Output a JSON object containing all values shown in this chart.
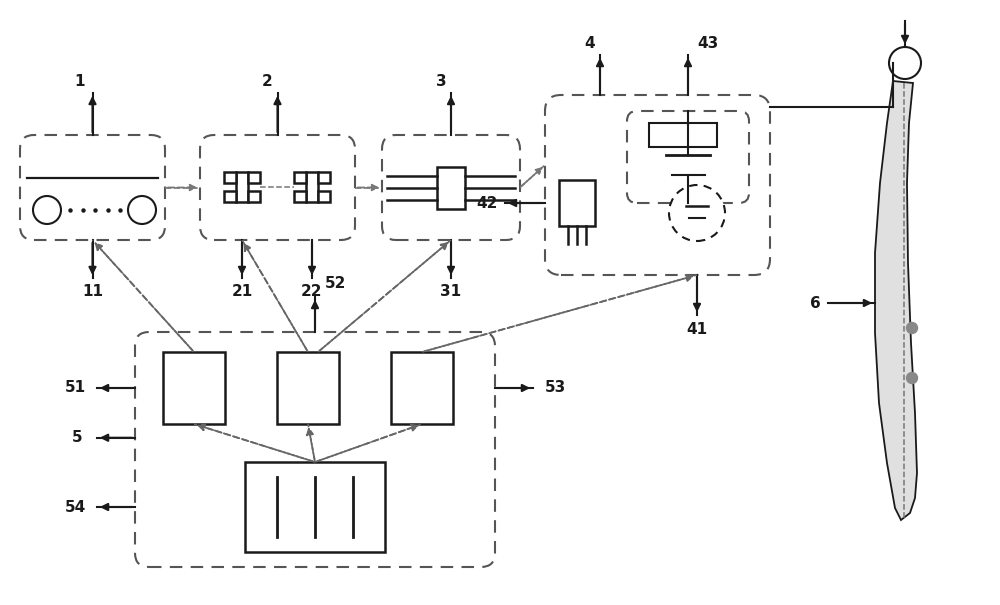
{
  "bg_color": "#ffffff",
  "line_color": "#1a1a1a",
  "dash_color": "#777777",
  "gray_color": "#666666",
  "figsize": [
    10.0,
    6.05
  ],
  "dpi": 100,
  "xlim": [
    0,
    10
  ],
  "ylim": [
    0,
    6.05
  ]
}
